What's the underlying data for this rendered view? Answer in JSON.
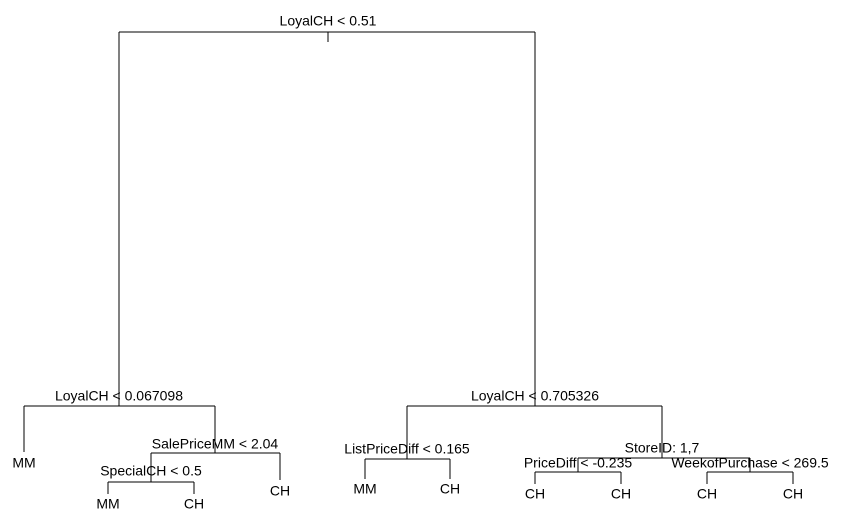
{
  "tree": {
    "nodes": [
      {
        "label": "LoyalCH < 0.51"
      },
      {
        "label": "LoyalCH < 0.067098"
      },
      {
        "label": "SalePriceMM < 2.04"
      },
      {
        "label": "SpecialCH < 0.5"
      },
      {
        "label": "LoyalCH < 0.705326"
      },
      {
        "label": "ListPriceDiff < 0.165"
      },
      {
        "label": "StoreID: 1,7"
      },
      {
        "label": "PriceDiff < -0.235"
      },
      {
        "label": "WeekofPurchase < 269.5"
      }
    ],
    "leaves": [
      {
        "label": "MM"
      },
      {
        "label": "MM"
      },
      {
        "label": "CH"
      },
      {
        "label": "CH"
      },
      {
        "label": "MM"
      },
      {
        "label": "CH"
      },
      {
        "label": "CH"
      },
      {
        "label": "CH"
      },
      {
        "label": "CH"
      },
      {
        "label": "CH"
      }
    ]
  }
}
